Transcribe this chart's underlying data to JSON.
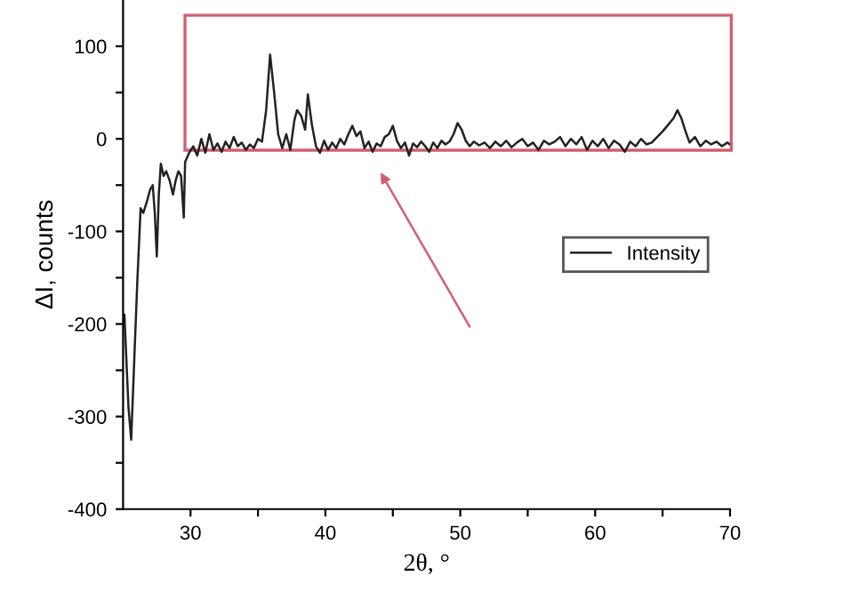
{
  "chart_data": {
    "type": "line",
    "xlabel": "2θ, °",
    "ylabel": "ΔI, counts",
    "xlim": [
      25,
      70
    ],
    "ylim": [
      -400,
      150
    ],
    "xticks": [
      30,
      {
        "value": 35,
        "label": null
      },
      40,
      {
        "value": 45,
        "label": null
      },
      50,
      {
        "value": 55,
        "label": null
      },
      60,
      {
        "value": 65,
        "label": null
      },
      70
    ],
    "yticks": [
      -400,
      {
        "value": -350,
        "label": null
      },
      -300,
      {
        "value": -250,
        "label": null
      },
      -200,
      {
        "value": -150,
        "label": null
      },
      -100,
      {
        "value": -50,
        "label": null
      },
      0,
      {
        "value": 50,
        "label": null
      },
      100
    ],
    "legend": "center right",
    "grid": false,
    "marker": "none",
    "line_style": "solid",
    "series": [
      {
        "name": "Intensity",
        "color": "#222222",
        "x": [
          25.1,
          25.4,
          25.6,
          25.8,
          26.05,
          26.3,
          26.5,
          26.8,
          27.0,
          27.2,
          27.35,
          27.5,
          27.65,
          27.8,
          28.0,
          28.2,
          28.45,
          28.7,
          28.9,
          29.1,
          29.3,
          29.5,
          29.6,
          29.9,
          30.2,
          30.5,
          30.8,
          31.1,
          31.4,
          31.7,
          32.0,
          32.3,
          32.6,
          32.9,
          33.2,
          33.5,
          33.8,
          34.1,
          34.4,
          34.7,
          35.0,
          35.3,
          35.6,
          35.9,
          36.2,
          36.5,
          36.8,
          37.1,
          37.4,
          37.7,
          37.9,
          38.2,
          38.5,
          38.7,
          39.0,
          39.3,
          39.6,
          39.9,
          40.2,
          40.5,
          40.8,
          41.1,
          41.4,
          41.7,
          42.0,
          42.3,
          42.6,
          42.9,
          43.2,
          43.5,
          43.8,
          44.1,
          44.4,
          44.7,
          45.0,
          45.3,
          45.6,
          45.9,
          46.2,
          46.5,
          46.8,
          47.1,
          47.4,
          47.7,
          48.0,
          48.3,
          48.6,
          48.9,
          49.2,
          49.5,
          49.8,
          50.1,
          50.4,
          50.7,
          51.0,
          51.4,
          51.8,
          52.2,
          52.6,
          53.0,
          53.4,
          53.8,
          54.2,
          54.6,
          55.0,
          55.4,
          55.8,
          56.2,
          56.6,
          57.0,
          57.4,
          57.8,
          58.2,
          58.6,
          59.0,
          59.4,
          59.8,
          60.2,
          60.6,
          61.0,
          61.4,
          61.8,
          62.2,
          62.6,
          63.0,
          63.4,
          63.8,
          64.2,
          64.6,
          65.0,
          65.4,
          65.8,
          66.1,
          66.4,
          66.7,
          67.0,
          67.4,
          67.8,
          68.2,
          68.6,
          69.0,
          69.4,
          69.8,
          70.0
        ],
        "values": [
          -190,
          -290,
          -325,
          -250,
          -156,
          -75,
          -80,
          -66,
          -55,
          -50,
          -80,
          -127,
          -60,
          -27,
          -40,
          -35,
          -45,
          -60,
          -45,
          -35,
          -40,
          -85,
          -25,
          -15,
          -8,
          -18,
          0,
          -15,
          5,
          -12,
          -5,
          -14,
          -3,
          -10,
          2,
          -8,
          -4,
          -12,
          -6,
          -10,
          0,
          -3,
          30,
          91,
          50,
          5,
          -10,
          5,
          -12,
          20,
          31,
          25,
          10,
          48,
          15,
          -8,
          -15,
          -2,
          -12,
          -4,
          -10,
          0,
          -6,
          5,
          14,
          3,
          8,
          -10,
          -3,
          -14,
          -5,
          -8,
          2,
          5,
          14,
          -2,
          -10,
          -4,
          -18,
          -5,
          -9,
          -3,
          -8,
          -14,
          -4,
          -10,
          -2,
          -6,
          -3,
          5,
          17,
          10,
          -2,
          -8,
          -3,
          -7,
          -4,
          -10,
          -3,
          -8,
          -2,
          -9,
          -4,
          0,
          -8,
          -4,
          -12,
          -2,
          -6,
          -3,
          2,
          -8,
          0,
          -6,
          2,
          -12,
          -2,
          -8,
          0,
          -10,
          -2,
          -6,
          -14,
          -3,
          -8,
          0,
          -6,
          -4,
          2,
          8,
          15,
          22,
          31,
          22,
          8,
          -4,
          2,
          -8,
          -2,
          -6,
          -3,
          -8,
          -4,
          -6
        ]
      }
    ]
  }
}
